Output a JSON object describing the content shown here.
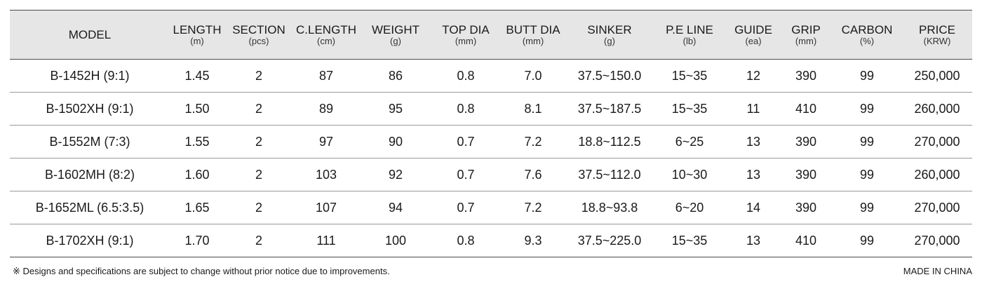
{
  "columns": [
    {
      "label": "MODEL",
      "unit": ""
    },
    {
      "label": "LENGTH",
      "unit": "(m)"
    },
    {
      "label": "SECTION",
      "unit": "(pcs)"
    },
    {
      "label": "C.LENGTH",
      "unit": "(cm)"
    },
    {
      "label": "WEIGHT",
      "unit": "(g)"
    },
    {
      "label": "TOP DIA",
      "unit": "(mm)"
    },
    {
      "label": "BUTT DIA",
      "unit": "(mm)"
    },
    {
      "label": "SINKER",
      "unit": "(g)"
    },
    {
      "label": "P.E LINE",
      "unit": "(lb)"
    },
    {
      "label": "GUIDE",
      "unit": "(ea)"
    },
    {
      "label": "GRIP",
      "unit": "(mm)"
    },
    {
      "label": "CARBON",
      "unit": "(%)"
    },
    {
      "label": "PRICE",
      "unit": "(KRW)"
    }
  ],
  "rows": [
    [
      "B-1452H (9:1)",
      "1.45",
      "2",
      "87",
      "86",
      "0.8",
      "7.0",
      "37.5~150.0",
      "15~35",
      "12",
      "390",
      "99",
      "250,000"
    ],
    [
      "B-1502XH (9:1)",
      "1.50",
      "2",
      "89",
      "95",
      "0.8",
      "8.1",
      "37.5~187.5",
      "15~35",
      "11",
      "410",
      "99",
      "260,000"
    ],
    [
      "B-1552M (7:3)",
      "1.55",
      "2",
      "97",
      "90",
      "0.7",
      "7.2",
      "18.8~112.5",
      "6~25",
      "13",
      "390",
      "99",
      "270,000"
    ],
    [
      "B-1602MH (8:2)",
      "1.60",
      "2",
      "103",
      "92",
      "0.7",
      "7.6",
      "37.5~112.0",
      "10~30",
      "13",
      "390",
      "99",
      "260,000"
    ],
    [
      "B-1652ML (6.5:3.5)",
      "1.65",
      "2",
      "107",
      "94",
      "0.7",
      "7.2",
      "18.8~93.8",
      "6~20",
      "14",
      "390",
      "99",
      "270,000"
    ],
    [
      "B-1702XH (9:1)",
      "1.70",
      "2",
      "111",
      "100",
      "0.8",
      "9.3",
      "37.5~225.0",
      "15~35",
      "13",
      "410",
      "99",
      "270,000"
    ]
  ],
  "footer": {
    "note": "※ Designs and specifications are subject to change without prior notice due to improvements.",
    "origin": "MADE IN CHINA"
  },
  "colors": {
    "header_bg": "#e6e6e6",
    "rule_dark": "#4a4a4a",
    "rule_light": "#9a9a9a"
  }
}
